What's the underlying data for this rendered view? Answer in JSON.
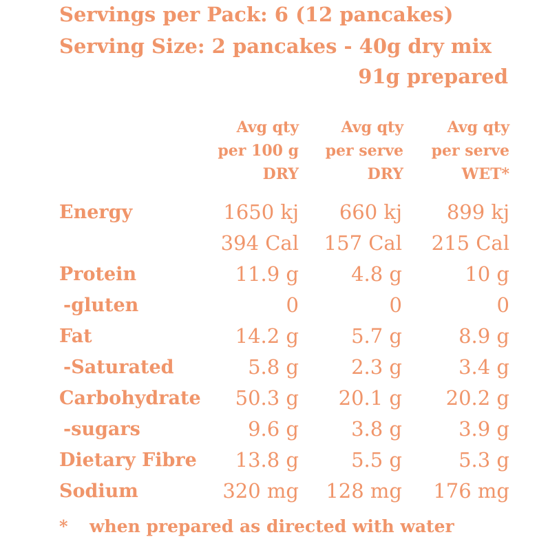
{
  "header": {
    "servings_line": "Servings per Pack: 6 (12 pancakes)",
    "serving_size_line": "Serving Size: 2 pancakes - 40g dry mix",
    "prepared_line": "91g prepared"
  },
  "columns": [
    {
      "line1": "Avg qty",
      "line2": "per 100 g",
      "line3": "DRY"
    },
    {
      "line1": "Avg qty",
      "line2": "per serve",
      "line3": "DRY"
    },
    {
      "line1": "Avg qty",
      "line2": "per serve",
      "line3": "WET*"
    }
  ],
  "rows": [
    {
      "label": "Energy",
      "sub": false,
      "values": [
        "1650 kj",
        "660 kj",
        "899 kj"
      ]
    },
    {
      "label": "",
      "sub": false,
      "values": [
        "394 Cal",
        "157 Cal",
        "215 Cal"
      ]
    },
    {
      "label": "Protein",
      "sub": false,
      "values": [
        "11.9 g",
        "4.8 g",
        "10 g"
      ]
    },
    {
      "label": "-gluten",
      "sub": true,
      "values": [
        "0",
        "0",
        "0"
      ]
    },
    {
      "label": "Fat",
      "sub": false,
      "values": [
        "14.2 g",
        "5.7 g",
        "8.9 g"
      ]
    },
    {
      "label": "-Saturated",
      "sub": true,
      "values": [
        "5.8 g",
        "2.3 g",
        "3.4 g"
      ]
    },
    {
      "label": "Carbohydrate",
      "sub": false,
      "values": [
        "50.3 g",
        "20.1 g",
        "20.2 g"
      ]
    },
    {
      "label": "-sugars",
      "sub": true,
      "values": [
        "9.6 g",
        "3.8 g",
        "3.9 g"
      ]
    },
    {
      "label": "Dietary Fibre",
      "sub": false,
      "values": [
        "13.8 g",
        "5.5 g",
        "5.3 g"
      ]
    },
    {
      "label": "Sodium",
      "sub": false,
      "values": [
        "320 mg",
        "128 mg",
        "176 mg"
      ]
    }
  ],
  "footnote": {
    "marker": "*",
    "text": "when prepared as directed with water"
  },
  "colors": {
    "text": "#f0956a",
    "background": "#ffffff"
  }
}
